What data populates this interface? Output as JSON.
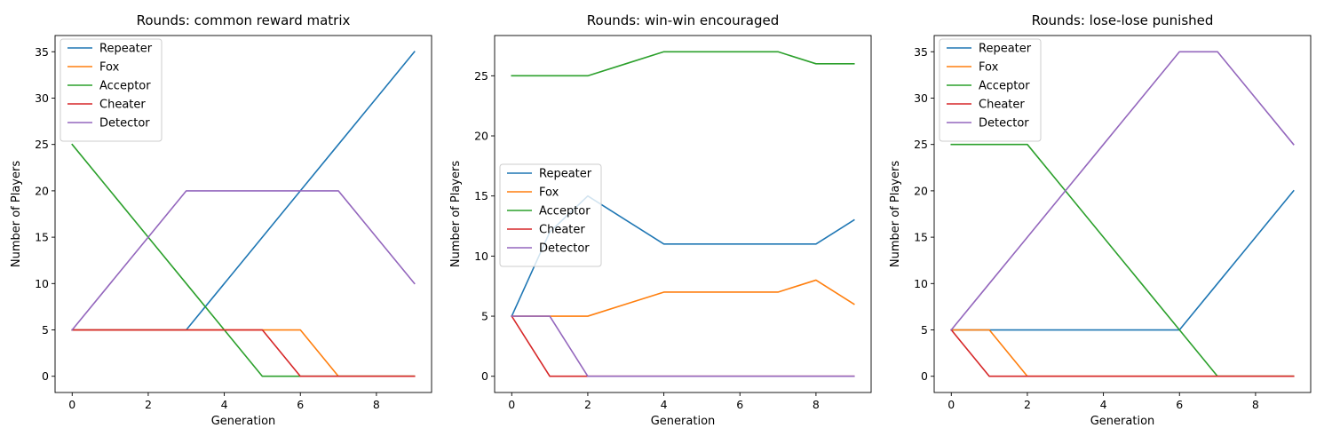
{
  "chart_data": [
    {
      "type": "line",
      "title": "Rounds: common reward matrix",
      "xlabel": "Generation",
      "ylabel": "Number of Players",
      "xlim": [
        -0.45,
        9.45
      ],
      "ylim": [
        -1.75,
        36.75
      ],
      "xticks": [
        0,
        2,
        4,
        6,
        8
      ],
      "yticks": [
        0,
        5,
        10,
        15,
        20,
        25,
        30,
        35
      ],
      "legend_position": "upper-left",
      "x": [
        0,
        1,
        2,
        3,
        4,
        5,
        6,
        7,
        8,
        9
      ],
      "series": [
        {
          "name": "Repeater",
          "color": "#1f77b4",
          "values": [
            5,
            5,
            5,
            5,
            10,
            15,
            20,
            25,
            30,
            35
          ]
        },
        {
          "name": "Fox",
          "color": "#ff7f0e",
          "values": [
            5,
            5,
            5,
            5,
            5,
            5,
            5,
            0,
            0,
            0
          ]
        },
        {
          "name": "Acceptor",
          "color": "#2ca02c",
          "values": [
            25,
            20,
            15,
            10,
            5,
            0,
            0,
            0,
            0,
            0
          ]
        },
        {
          "name": "Cheater",
          "color": "#d62728",
          "values": [
            5,
            5,
            5,
            5,
            5,
            5,
            0,
            0,
            0,
            0
          ]
        },
        {
          "name": "Detector",
          "color": "#9467bd",
          "values": [
            5,
            10,
            15,
            20,
            20,
            20,
            20,
            20,
            15,
            10
          ]
        }
      ]
    },
    {
      "type": "line",
      "title": "Rounds: win-win encouraged",
      "xlabel": "Generation",
      "ylabel": "Number of Players",
      "xlim": [
        -0.45,
        9.45
      ],
      "ylim": [
        -1.35,
        28.35
      ],
      "xticks": [
        0,
        2,
        4,
        6,
        8
      ],
      "yticks": [
        0,
        5,
        10,
        15,
        20,
        25
      ],
      "legend_position": "center-left",
      "x": [
        0,
        1,
        2,
        3,
        4,
        5,
        6,
        7,
        8,
        9
      ],
      "series": [
        {
          "name": "Repeater",
          "color": "#1f77b4",
          "values": [
            5,
            12,
            15,
            13,
            11,
            11,
            11,
            11,
            11,
            13
          ]
        },
        {
          "name": "Fox",
          "color": "#ff7f0e",
          "values": [
            5,
            5,
            5,
            6,
            7,
            7,
            7,
            7,
            8,
            6
          ]
        },
        {
          "name": "Acceptor",
          "color": "#2ca02c",
          "values": [
            25,
            25,
            25,
            26,
            27,
            27,
            27,
            27,
            26,
            26
          ]
        },
        {
          "name": "Cheater",
          "color": "#d62728",
          "values": [
            5,
            0,
            0,
            0,
            0,
            0,
            0,
            0,
            0,
            0
          ]
        },
        {
          "name": "Detector",
          "color": "#9467bd",
          "values": [
            5,
            5,
            0,
            0,
            0,
            0,
            0,
            0,
            0,
            0
          ]
        }
      ]
    },
    {
      "type": "line",
      "title": "Rounds: lose-lose punished",
      "xlabel": "Generation",
      "ylabel": "Number of Players",
      "xlim": [
        -0.45,
        9.45
      ],
      "ylim": [
        -1.75,
        36.75
      ],
      "xticks": [
        0,
        2,
        4,
        6,
        8
      ],
      "yticks": [
        0,
        5,
        10,
        15,
        20,
        25,
        30,
        35
      ],
      "legend_position": "upper-left",
      "x": [
        0,
        1,
        2,
        3,
        4,
        5,
        6,
        7,
        8,
        9
      ],
      "series": [
        {
          "name": "Repeater",
          "color": "#1f77b4",
          "values": [
            5,
            5,
            5,
            5,
            5,
            5,
            5,
            10,
            15,
            20
          ]
        },
        {
          "name": "Fox",
          "color": "#ff7f0e",
          "values": [
            5,
            5,
            0,
            0,
            0,
            0,
            0,
            0,
            0,
            0
          ]
        },
        {
          "name": "Acceptor",
          "color": "#2ca02c",
          "values": [
            25,
            25,
            25,
            20,
            15,
            10,
            5,
            0,
            0,
            0
          ]
        },
        {
          "name": "Cheater",
          "color": "#d62728",
          "values": [
            5,
            0,
            0,
            0,
            0,
            0,
            0,
            0,
            0,
            0
          ]
        },
        {
          "name": "Detector",
          "color": "#9467bd",
          "values": [
            5,
            10,
            15,
            20,
            25,
            30,
            35,
            35,
            30,
            25
          ]
        }
      ]
    }
  ]
}
